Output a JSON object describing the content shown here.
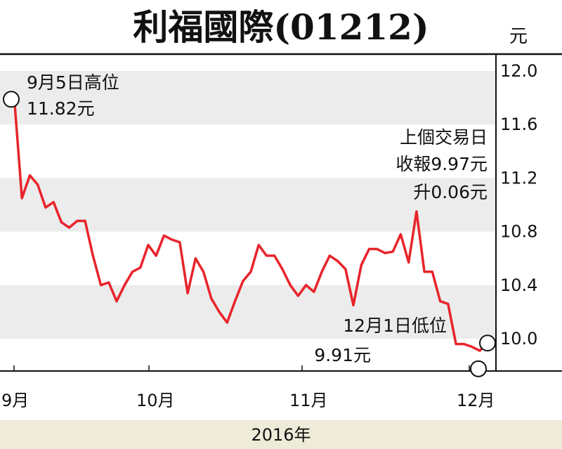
{
  "chart_data": {
    "type": "line",
    "title": "利福國際(01212)",
    "unit": "元",
    "xlabel": "2016年",
    "x_ticks": [
      "9月",
      "10月",
      "11月",
      "12月"
    ],
    "ylim": [
      9.8,
      12.05
    ],
    "y_ticks": [
      "12.0",
      "11.6",
      "11.2",
      "10.8",
      "10.4",
      "10.0"
    ],
    "y_tick_values": [
      12.0,
      11.6,
      11.2,
      10.8,
      10.4,
      10.0
    ],
    "grid": "alternating horizontal bands",
    "line_color": "#e8242b",
    "band_color": "#ececec",
    "footer_color": "#eeebd9",
    "series": [
      {
        "values": [
          11.82,
          11.05,
          11.22,
          11.15,
          10.98,
          11.02,
          10.87,
          10.83,
          10.88,
          10.88,
          10.62,
          10.4,
          10.42,
          10.28,
          10.4,
          10.5,
          10.53,
          10.7,
          10.62,
          10.77,
          10.74,
          10.72,
          10.34,
          10.6,
          10.5,
          10.3,
          10.2,
          10.12,
          10.28,
          10.43,
          10.5,
          10.7,
          10.62,
          10.62,
          10.52,
          10.4,
          10.32,
          10.4,
          10.35,
          10.5,
          10.62,
          10.58,
          10.52,
          10.25,
          10.55,
          10.67,
          10.67,
          10.64,
          10.65,
          10.78,
          10.57,
          10.95,
          10.5,
          10.5,
          10.28,
          10.26,
          9.96,
          9.96,
          9.94,
          9.91,
          9.97
        ]
      }
    ],
    "annotations": {
      "high_label": "9月5日高位",
      "high_value": "11.82元",
      "high_y": 11.82,
      "low_label": "12月1日低位",
      "low_value": "9.91元",
      "low_y": 9.88,
      "last_line1": "上個交易日",
      "last_line2": "收報9.97元",
      "last_line3": "升0.06元",
      "last_y": 10.02
    }
  }
}
